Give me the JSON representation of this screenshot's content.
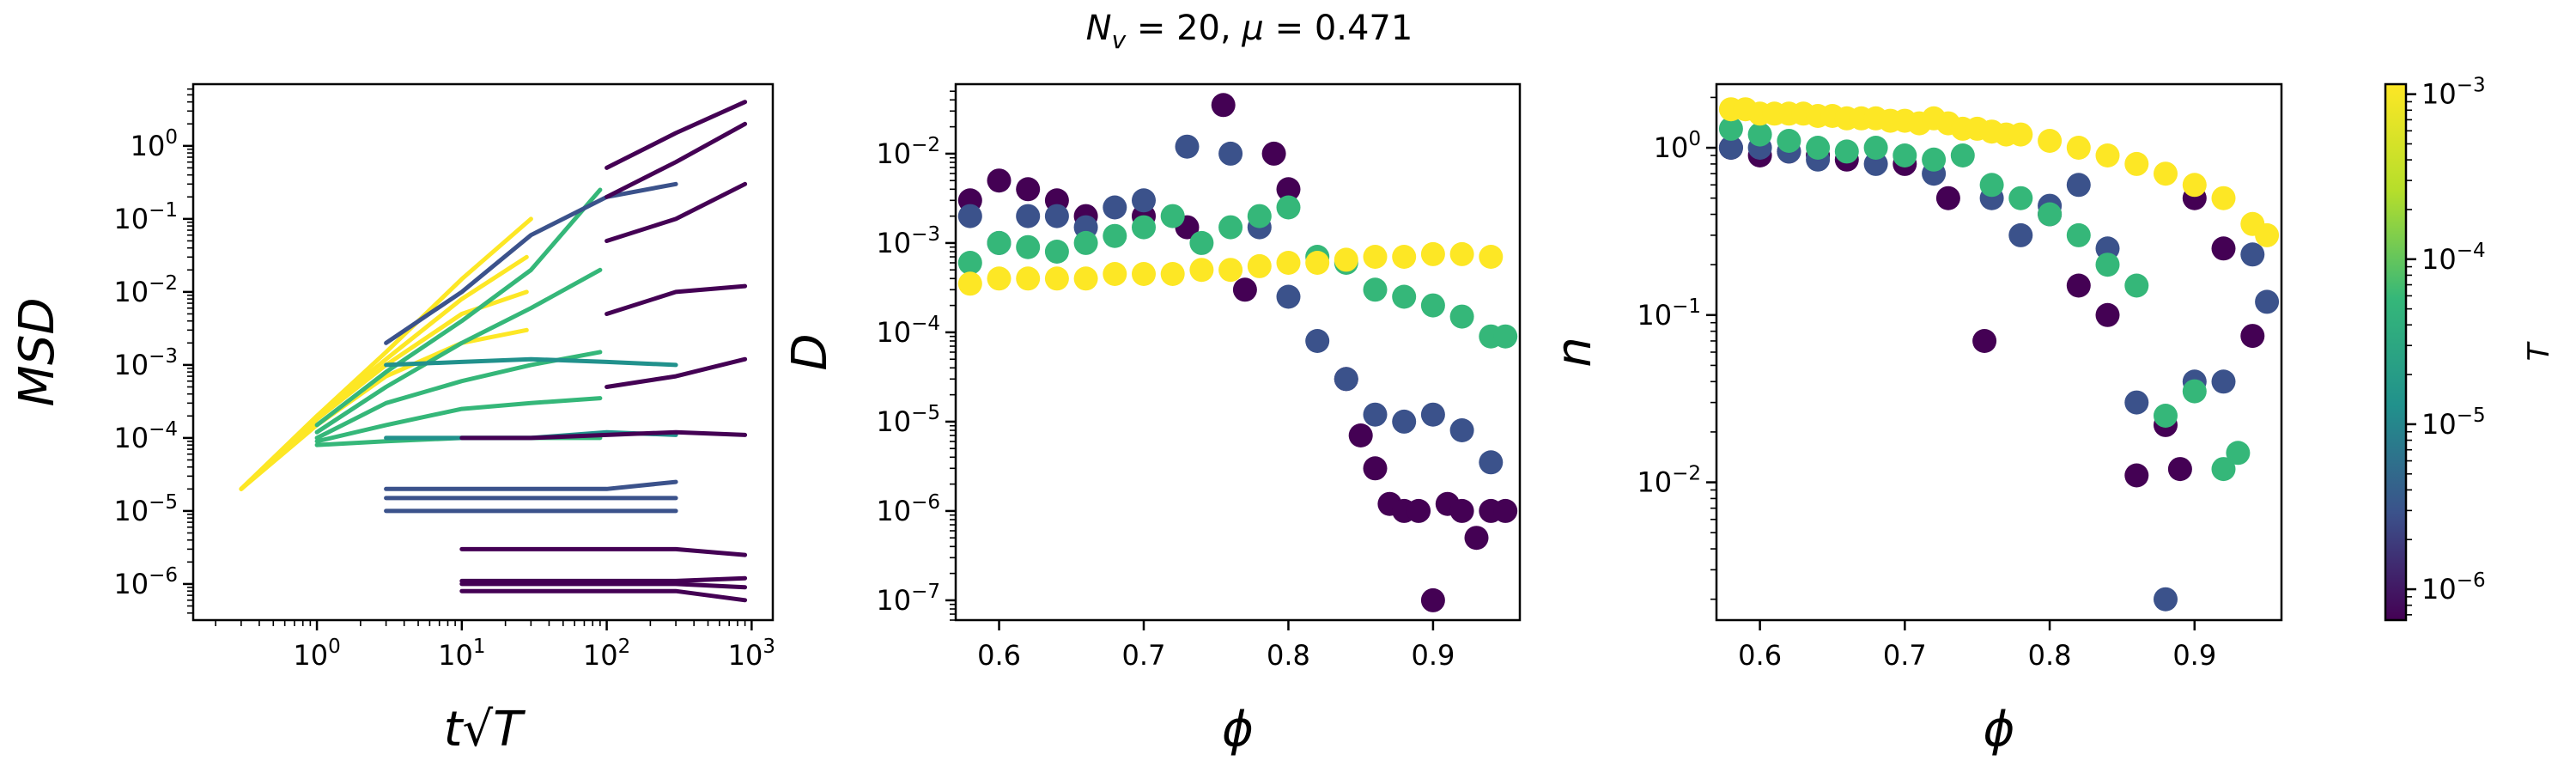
{
  "suptitle": "N_v = 20, μ = 0.471",
  "colorbar": {
    "label": "T",
    "ticks": [
      "10^-6",
      "10^-5",
      "10^-4",
      "10^-3"
    ],
    "scale": "log",
    "range": [
      6.5e-07,
      0.00115
    ],
    "colormap": "viridis",
    "colors": [
      "#440154",
      "#3b528b",
      "#21918c",
      "#35b779",
      "#b5de2b",
      "#fde725"
    ]
  },
  "chart_data": [
    {
      "type": "line",
      "xlabel": "t√T",
      "ylabel": "MSD",
      "xscale": "log",
      "yscale": "log",
      "xlim": [
        0.14,
        1400
      ],
      "ylim": [
        3.2e-07,
        7
      ],
      "xticks": [
        "10^0",
        "10^1",
        "10^2",
        "10^3"
      ],
      "yticks": [
        "10^-6",
        "10^-5",
        "10^-4",
        "10^-3",
        "10^-2",
        "10^-1",
        "10^0"
      ],
      "series": [
        {
          "color": "#fde725",
          "x": [
            0.3,
            1,
            3,
            10,
            30
          ],
          "y": [
            2e-05,
            0.0002,
            0.0015,
            0.015,
            0.1
          ]
        },
        {
          "color": "#fde725",
          "x": [
            0.3,
            1,
            3,
            10,
            28
          ],
          "y": [
            2e-05,
            0.0002,
            0.0012,
            0.008,
            0.03
          ]
        },
        {
          "color": "#fde725",
          "x": [
            0.3,
            1,
            3,
            10,
            28
          ],
          "y": [
            2e-05,
            0.00018,
            0.001,
            0.005,
            0.01
          ]
        },
        {
          "color": "#fde725",
          "x": [
            0.3,
            1,
            3,
            10,
            28
          ],
          "y": [
            2e-05,
            0.00015,
            0.0007,
            0.002,
            0.003
          ]
        },
        {
          "color": "#35b779",
          "x": [
            1,
            3,
            10,
            30,
            90
          ],
          "y": [
            0.00015,
            0.0008,
            0.004,
            0.02,
            0.25
          ]
        },
        {
          "color": "#35b779",
          "x": [
            1,
            3,
            10,
            30,
            90
          ],
          "y": [
            0.00012,
            0.0005,
            0.002,
            0.006,
            0.02
          ]
        },
        {
          "color": "#35b779",
          "x": [
            1,
            3,
            10,
            30,
            90
          ],
          "y": [
            0.0001,
            0.0003,
            0.0006,
            0.001,
            0.0015
          ]
        },
        {
          "color": "#35b779",
          "x": [
            1,
            3,
            10,
            30,
            90
          ],
          "y": [
            9e-05,
            0.00015,
            0.00025,
            0.0003,
            0.00035
          ]
        },
        {
          "color": "#35b779",
          "x": [
            1,
            3,
            10,
            30,
            90
          ],
          "y": [
            8e-05,
            9e-05,
            0.0001,
            0.0001,
            0.0001
          ]
        },
        {
          "color": "#3b528b",
          "x": [
            3,
            10,
            30,
            100,
            300
          ],
          "y": [
            0.002,
            0.01,
            0.06,
            0.2,
            0.3
          ]
        },
        {
          "color": "#21918c",
          "x": [
            3,
            10,
            30,
            100,
            300
          ],
          "y": [
            0.0001,
            0.0001,
            0.0001,
            0.00012,
            0.00011
          ]
        },
        {
          "color": "#21918c",
          "x": [
            3,
            10,
            30,
            100,
            300
          ],
          "y": [
            0.001,
            0.0011,
            0.0012,
            0.0011,
            0.001
          ]
        },
        {
          "color": "#3b528b",
          "x": [
            3,
            10,
            30,
            100,
            300
          ],
          "y": [
            2e-05,
            2e-05,
            2e-05,
            2e-05,
            2.5e-05
          ]
        },
        {
          "color": "#3b528b",
          "x": [
            3,
            10,
            30,
            100,
            300
          ],
          "y": [
            1.5e-05,
            1.5e-05,
            1.5e-05,
            1.5e-05,
            1.5e-05
          ]
        },
        {
          "color": "#3b528b",
          "x": [
            3,
            10,
            30,
            100,
            300
          ],
          "y": [
            1e-05,
            1e-05,
            1e-05,
            1e-05,
            1e-05
          ]
        },
        {
          "color": "#440154",
          "x": [
            100,
            300,
            900
          ],
          "y": [
            0.5,
            1.5,
            4
          ]
        },
        {
          "color": "#440154",
          "x": [
            100,
            300,
            900
          ],
          "y": [
            0.2,
            0.6,
            2
          ]
        },
        {
          "color": "#440154",
          "x": [
            100,
            300,
            900
          ],
          "y": [
            0.05,
            0.1,
            0.3
          ]
        },
        {
          "color": "#440154",
          "x": [
            100,
            300,
            900
          ],
          "y": [
            0.005,
            0.01,
            0.012
          ]
        },
        {
          "color": "#440154",
          "x": [
            100,
            300,
            900
          ],
          "y": [
            0.0005,
            0.0007,
            0.0012
          ]
        },
        {
          "color": "#440154",
          "x": [
            10,
            30,
            100,
            300,
            900
          ],
          "y": [
            0.0001,
            0.0001,
            0.00011,
            0.00012,
            0.00011
          ]
        },
        {
          "color": "#440154",
          "x": [
            10,
            30,
            100,
            300,
            900
          ],
          "y": [
            3e-06,
            3e-06,
            3e-06,
            3e-06,
            2.5e-06
          ]
        },
        {
          "color": "#440154",
          "x": [
            10,
            30,
            100,
            300,
            900
          ],
          "y": [
            1.1e-06,
            1.1e-06,
            1.1e-06,
            1.1e-06,
            1.2e-06
          ]
        },
        {
          "color": "#440154",
          "x": [
            10,
            30,
            100,
            300,
            900
          ],
          "y": [
            1e-06,
            1e-06,
            1e-06,
            1e-06,
            9e-07
          ]
        },
        {
          "color": "#440154",
          "x": [
            10,
            30,
            100,
            300,
            900
          ],
          "y": [
            8e-07,
            8e-07,
            8e-07,
            8e-07,
            6e-07
          ]
        }
      ]
    },
    {
      "type": "scatter",
      "xlabel": "ϕ",
      "ylabel": "D",
      "yscale": "log",
      "xlim": [
        0.57,
        0.96
      ],
      "ylim": [
        6e-08,
        0.06
      ],
      "xticks": [
        "0.6",
        "0.7",
        "0.8",
        "0.9"
      ],
      "yticks": [
        "10^-7",
        "10^-6",
        "10^-5",
        "10^-4",
        "10^-3",
        "10^-2"
      ],
      "series": [
        {
          "color": "#440154",
          "x": [
            0.58,
            0.6,
            0.62,
            0.64,
            0.66,
            0.7,
            0.73,
            0.755,
            0.77,
            0.79,
            0.8,
            0.84,
            0.85,
            0.86,
            0.87,
            0.88,
            0.89,
            0.9,
            0.91,
            0.92,
            0.93,
            0.94,
            0.95
          ],
          "y": [
            0.003,
            0.005,
            0.004,
            0.003,
            0.002,
            0.002,
            0.0015,
            0.035,
            0.0003,
            0.01,
            0.004,
            3e-05,
            7e-06,
            3e-06,
            1.2e-06,
            1e-06,
            1e-06,
            1e-07,
            1.2e-06,
            1e-06,
            5e-07,
            1e-06,
            1e-06
          ]
        },
        {
          "color": "#3b528b",
          "x": [
            0.58,
            0.6,
            0.62,
            0.64,
            0.66,
            0.68,
            0.7,
            0.73,
            0.76,
            0.78,
            0.8,
            0.82,
            0.84,
            0.86,
            0.88,
            0.9,
            0.92,
            0.94
          ],
          "y": [
            0.002,
            0.001,
            0.002,
            0.002,
            0.0015,
            0.0025,
            0.003,
            0.012,
            0.01,
            0.0015,
            0.00025,
            8e-05,
            3e-05,
            1.2e-05,
            1e-05,
            1.2e-05,
            8e-06,
            3.5e-06
          ]
        },
        {
          "color": "#35b779",
          "x": [
            0.58,
            0.6,
            0.62,
            0.64,
            0.66,
            0.68,
            0.7,
            0.72,
            0.74,
            0.76,
            0.78,
            0.8,
            0.82,
            0.84,
            0.86,
            0.88,
            0.9,
            0.92,
            0.94,
            0.95
          ],
          "y": [
            0.0006,
            0.001,
            0.0009,
            0.0008,
            0.001,
            0.0012,
            0.0015,
            0.002,
            0.001,
            0.0015,
            0.002,
            0.0025,
            0.0007,
            0.0006,
            0.0003,
            0.00025,
            0.0002,
            0.00015,
            9e-05,
            9e-05
          ]
        },
        {
          "color": "#fde725",
          "x": [
            0.58,
            0.6,
            0.62,
            0.64,
            0.66,
            0.68,
            0.7,
            0.72,
            0.74,
            0.76,
            0.78,
            0.8,
            0.82,
            0.84,
            0.86,
            0.88,
            0.9,
            0.92,
            0.94
          ],
          "y": [
            0.00035,
            0.0004,
            0.0004,
            0.0004,
            0.0004,
            0.00045,
            0.00045,
            0.00045,
            0.0005,
            0.0005,
            0.00055,
            0.0006,
            0.0006,
            0.00065,
            0.0007,
            0.0007,
            0.00075,
            0.00075,
            0.0007
          ]
        }
      ]
    },
    {
      "type": "scatter",
      "xlabel": "ϕ",
      "ylabel": "n",
      "yscale": "log",
      "xlim": [
        0.57,
        0.96
      ],
      "ylim": [
        0.0015,
        2.4
      ],
      "xticks": [
        "0.6",
        "0.7",
        "0.8",
        "0.9"
      ],
      "yticks": [
        "10^-2",
        "10^-1",
        "10^0"
      ],
      "series": [
        {
          "color": "#440154",
          "x": [
            0.58,
            0.6,
            0.62,
            0.64,
            0.66,
            0.7,
            0.73,
            0.755,
            0.8,
            0.82,
            0.84,
            0.86,
            0.88,
            0.89,
            0.9,
            0.92,
            0.94
          ],
          "y": [
            1,
            0.9,
            0.95,
            0.9,
            0.85,
            0.8,
            0.5,
            0.07,
            0.4,
            0.15,
            0.1,
            0.011,
            0.022,
            0.012,
            0.5,
            0.25,
            0.075
          ]
        },
        {
          "color": "#3b528b",
          "x": [
            0.58,
            0.6,
            0.62,
            0.64,
            0.68,
            0.72,
            0.76,
            0.78,
            0.8,
            0.82,
            0.84,
            0.86,
            0.88,
            0.9,
            0.92,
            0.94,
            0.95
          ],
          "y": [
            1,
            1,
            0.95,
            0.85,
            0.8,
            0.7,
            0.5,
            0.3,
            0.45,
            0.6,
            0.25,
            0.03,
            0.002,
            0.04,
            0.04,
            0.23,
            0.12
          ]
        },
        {
          "color": "#35b779",
          "x": [
            0.58,
            0.6,
            0.62,
            0.64,
            0.66,
            0.68,
            0.7,
            0.72,
            0.74,
            0.76,
            0.78,
            0.8,
            0.82,
            0.84,
            0.86,
            0.88,
            0.9,
            0.92,
            0.93
          ],
          "y": [
            1.3,
            1.2,
            1.1,
            1,
            0.95,
            1,
            0.9,
            0.85,
            0.9,
            0.6,
            0.5,
            0.4,
            0.3,
            0.2,
            0.15,
            0.025,
            0.035,
            0.012,
            0.015
          ]
        },
        {
          "color": "#fde725",
          "x": [
            0.58,
            0.59,
            0.6,
            0.61,
            0.62,
            0.63,
            0.64,
            0.65,
            0.66,
            0.67,
            0.68,
            0.69,
            0.7,
            0.71,
            0.72,
            0.73,
            0.74,
            0.75,
            0.76,
            0.77,
            0.78,
            0.8,
            0.82,
            0.84,
            0.86,
            0.88,
            0.9,
            0.92,
            0.94,
            0.95
          ],
          "y": [
            1.7,
            1.7,
            1.6,
            1.6,
            1.6,
            1.6,
            1.55,
            1.55,
            1.5,
            1.5,
            1.5,
            1.45,
            1.45,
            1.4,
            1.5,
            1.4,
            1.3,
            1.3,
            1.25,
            1.2,
            1.2,
            1.1,
            1,
            0.9,
            0.8,
            0.7,
            0.6,
            0.5,
            0.35,
            0.3
          ]
        }
      ]
    }
  ]
}
